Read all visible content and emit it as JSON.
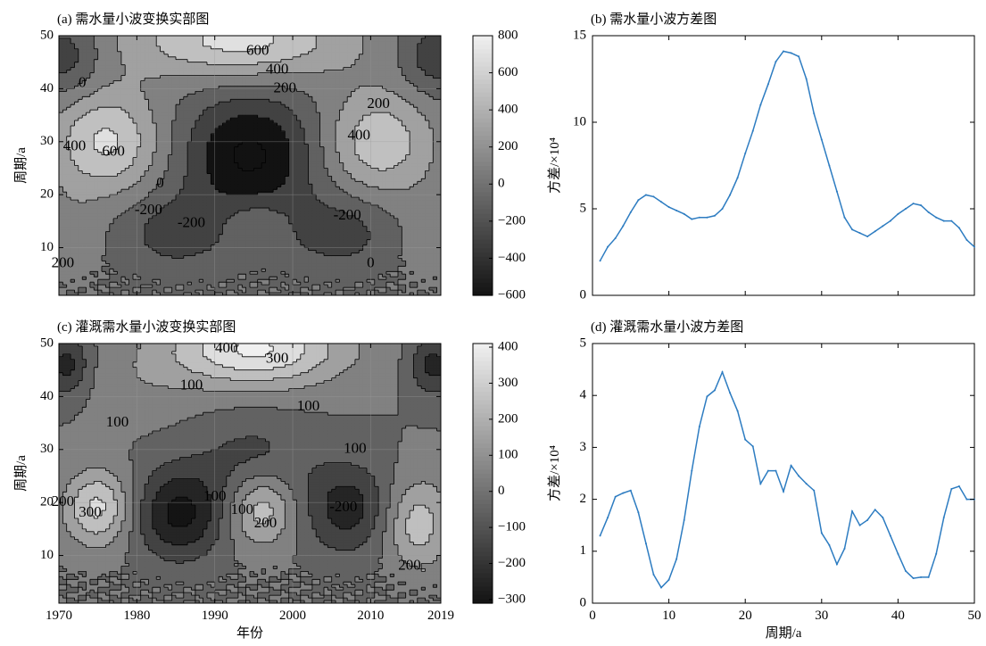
{
  "chart_data": [
    {
      "id": "a",
      "type": "heatmap",
      "title": "(a) 需水量小波变换实部图",
      "xlabel": "",
      "ylabel": "周期/a",
      "xlim": [
        1970,
        2019
      ],
      "ylim": [
        1,
        50
      ],
      "xticks": [],
      "yticks": [
        "10",
        "20",
        "30",
        "40",
        "50"
      ],
      "colorbar": {
        "min": -600,
        "max": 800,
        "ticks": [
          "800",
          "600",
          "400",
          "200",
          "0",
          "−200",
          "−400",
          "−600"
        ]
      },
      "features": [
        {
          "x": 1994.5,
          "y": 27.5,
          "value": -640,
          "sx": 6,
          "sy": 8
        },
        {
          "x": 1976,
          "y": 30,
          "value": 640,
          "sx": 5,
          "sy": 7
        },
        {
          "x": 2011,
          "y": 30,
          "value": 560,
          "sx": 5,
          "sy": 7
        },
        {
          "x": 1993,
          "y": 49,
          "value": 680,
          "sx": 10,
          "sy": 5
        },
        {
          "x": 1985,
          "y": 13,
          "value": -300,
          "sx": 5,
          "sy": 5
        },
        {
          "x": 2006,
          "y": 13,
          "value": -300,
          "sx": 5,
          "sy": 5
        },
        {
          "x": 1995,
          "y": 15,
          "value": 180,
          "sx": 3,
          "sy": 3
        },
        {
          "x": 1971,
          "y": 46,
          "value": -340,
          "sx": 3,
          "sy": 5
        },
        {
          "x": 2018,
          "y": 46,
          "value": -340,
          "sx": 3,
          "sy": 5
        },
        {
          "x": 1971,
          "y": 12,
          "value": 150,
          "sx": 3,
          "sy": 6
        },
        {
          "x": 2018,
          "y": 12,
          "value": 150,
          "sx": 3,
          "sy": 6
        }
      ],
      "noise": 140,
      "contour_levels": [
        -600,
        -400,
        -200,
        0,
        200,
        400,
        600
      ],
      "contour_labels": [
        {
          "text": "600",
          "x": 1995.5,
          "y": 47
        },
        {
          "text": "400",
          "x": 1998,
          "y": 43.5
        },
        {
          "text": "200",
          "x": 1999,
          "y": 40
        },
        {
          "text": "0",
          "x": 1973,
          "y": 41
        },
        {
          "text": "200",
          "x": 2011,
          "y": 37
        },
        {
          "text": "400",
          "x": 1972,
          "y": 29
        },
        {
          "text": "600",
          "x": 1977,
          "y": 28
        },
        {
          "text": "400",
          "x": 2008.5,
          "y": 31
        },
        {
          "text": "0",
          "x": 1983,
          "y": 22
        },
        {
          "text": "-200",
          "x": 1981.5,
          "y": 17
        },
        {
          "text": "-200",
          "x": 1987,
          "y": 14.5
        },
        {
          "text": "-200",
          "x": 2007,
          "y": 16
        },
        {
          "text": "200",
          "x": 1970.5,
          "y": 7
        },
        {
          "text": "0",
          "x": 2010,
          "y": 7
        }
      ]
    },
    {
      "id": "b",
      "type": "line",
      "title": "(b) 需水量小波方差图",
      "xlabel": "",
      "ylabel": "方差/×10⁴",
      "xlim": [
        0,
        50
      ],
      "ylim": [
        0,
        15
      ],
      "xticks": [],
      "yticks": [
        "0",
        "5",
        "10",
        "15"
      ],
      "x": [
        1,
        2,
        3,
        4,
        5,
        6,
        7,
        8,
        9,
        10,
        11,
        12,
        13,
        14,
        15,
        16,
        17,
        18,
        19,
        20,
        21,
        22,
        23,
        24,
        25,
        26,
        27,
        28,
        29,
        30,
        31,
        32,
        33,
        34,
        35,
        36,
        37,
        38,
        39,
        40,
        41,
        42,
        43,
        44,
        45,
        46,
        47,
        48,
        49,
        50
      ],
      "values": [
        2.0,
        2.8,
        3.3,
        4.0,
        4.8,
        5.5,
        5.8,
        5.7,
        5.4,
        5.1,
        4.9,
        4.7,
        4.4,
        4.5,
        4.5,
        4.6,
        5.0,
        5.8,
        6.8,
        8.2,
        9.5,
        11.0,
        12.2,
        13.5,
        14.1,
        14.0,
        13.8,
        12.5,
        10.5,
        9.0,
        7.5,
        6.0,
        4.5,
        3.8,
        3.6,
        3.4,
        3.7,
        4.0,
        4.3,
        4.7,
        5.0,
        5.3,
        5.2,
        4.8,
        4.5,
        4.3,
        4.3,
        3.9,
        3.2,
        2.8
      ]
    },
    {
      "id": "c",
      "type": "heatmap",
      "title": "(c) 灌溉需水量小波变换实部图",
      "xlabel": "年份",
      "ylabel": "周期/a",
      "xlim": [
        1970,
        2019
      ],
      "ylim": [
        1,
        50
      ],
      "xticks": [
        "1970",
        "1980",
        "1990",
        "2000",
        "2010",
        "2019"
      ],
      "yticks": [
        "10",
        "20",
        "30",
        "40",
        "50"
      ],
      "colorbar": {
        "min": -310,
        "max": 410,
        "ticks": [
          "400",
          "300",
          "200",
          "100",
          "0",
          "−100",
          "−200",
          "−300"
        ]
      },
      "features": [
        {
          "x": 1995,
          "y": 49,
          "value": 420,
          "sx": 8,
          "sy": 5
        },
        {
          "x": 1985.5,
          "y": 18,
          "value": -330,
          "sx": 4,
          "sy": 6
        },
        {
          "x": 1975,
          "y": 19,
          "value": 330,
          "sx": 3,
          "sy": 5
        },
        {
          "x": 1996,
          "y": 19,
          "value": 280,
          "sx": 3,
          "sy": 5
        },
        {
          "x": 2007,
          "y": 19,
          "value": -250,
          "sx": 4,
          "sy": 6
        },
        {
          "x": 2016,
          "y": 16,
          "value": 260,
          "sx": 3,
          "sy": 6
        },
        {
          "x": 1995,
          "y": 28,
          "value": -140,
          "sx": 5,
          "sy": 6
        },
        {
          "x": 1971,
          "y": 46,
          "value": -240,
          "sx": 2,
          "sy": 4
        },
        {
          "x": 2018,
          "y": 46,
          "value": -240,
          "sx": 2,
          "sy": 4
        },
        {
          "x": 1980,
          "y": 42,
          "value": 60,
          "sx": 5,
          "sy": 5
        }
      ],
      "noise": 110,
      "contour_levels": [
        -300,
        -200,
        -100,
        0,
        100,
        200,
        300,
        400
      ],
      "contour_labels": [
        {
          "text": "400",
          "x": 1991.5,
          "y": 49
        },
        {
          "text": "300",
          "x": 1998,
          "y": 47
        },
        {
          "text": "100",
          "x": 1987,
          "y": 42
        },
        {
          "text": "100",
          "x": 1977.5,
          "y": 35
        },
        {
          "text": "100",
          "x": 2002,
          "y": 38
        },
        {
          "text": "100",
          "x": 2008,
          "y": 30
        },
        {
          "text": "200",
          "x": 1970.5,
          "y": 20
        },
        {
          "text": "300",
          "x": 1974,
          "y": 18
        },
        {
          "text": "100",
          "x": 1990,
          "y": 21
        },
        {
          "text": "100",
          "x": 1993.5,
          "y": 18.5
        },
        {
          "text": "200",
          "x": 1996.5,
          "y": 16
        },
        {
          "text": "-200",
          "x": 2006.5,
          "y": 19
        },
        {
          "text": "200",
          "x": 2015,
          "y": 8
        }
      ]
    },
    {
      "id": "d",
      "type": "line",
      "title": "(d) 灌溉需水量小波方差图",
      "xlabel": "周期/a",
      "ylabel": "方差/×10⁴",
      "xlim": [
        0,
        50
      ],
      "ylim": [
        0,
        5
      ],
      "xticks": [
        "0",
        "10",
        "20",
        "30",
        "40",
        "50"
      ],
      "yticks": [
        "0",
        "1",
        "2",
        "3",
        "4",
        "5"
      ],
      "x": [
        1,
        2,
        3,
        4,
        5,
        6,
        7,
        8,
        9,
        10,
        11,
        12,
        13,
        14,
        15,
        16,
        17,
        18,
        19,
        20,
        21,
        22,
        23,
        24,
        25,
        26,
        27,
        28,
        29,
        30,
        31,
        32,
        33,
        34,
        35,
        36,
        37,
        38,
        39,
        40,
        41,
        42,
        43,
        44,
        45,
        46,
        47,
        48,
        49,
        50
      ],
      "values": [
        1.3,
        1.65,
        2.05,
        2.12,
        2.17,
        1.75,
        1.15,
        0.55,
        0.3,
        0.45,
        0.85,
        1.6,
        2.55,
        3.4,
        3.98,
        4.1,
        4.45,
        4.05,
        3.7,
        3.15,
        3.02,
        2.3,
        2.55,
        2.55,
        2.15,
        2.65,
        2.45,
        2.3,
        2.17,
        1.35,
        1.12,
        0.75,
        1.05,
        1.77,
        1.5,
        1.6,
        1.8,
        1.65,
        1.3,
        0.95,
        0.62,
        0.48,
        0.5,
        0.5,
        0.95,
        1.65,
        2.2,
        2.25,
        2.0,
        2.0
      ]
    }
  ]
}
